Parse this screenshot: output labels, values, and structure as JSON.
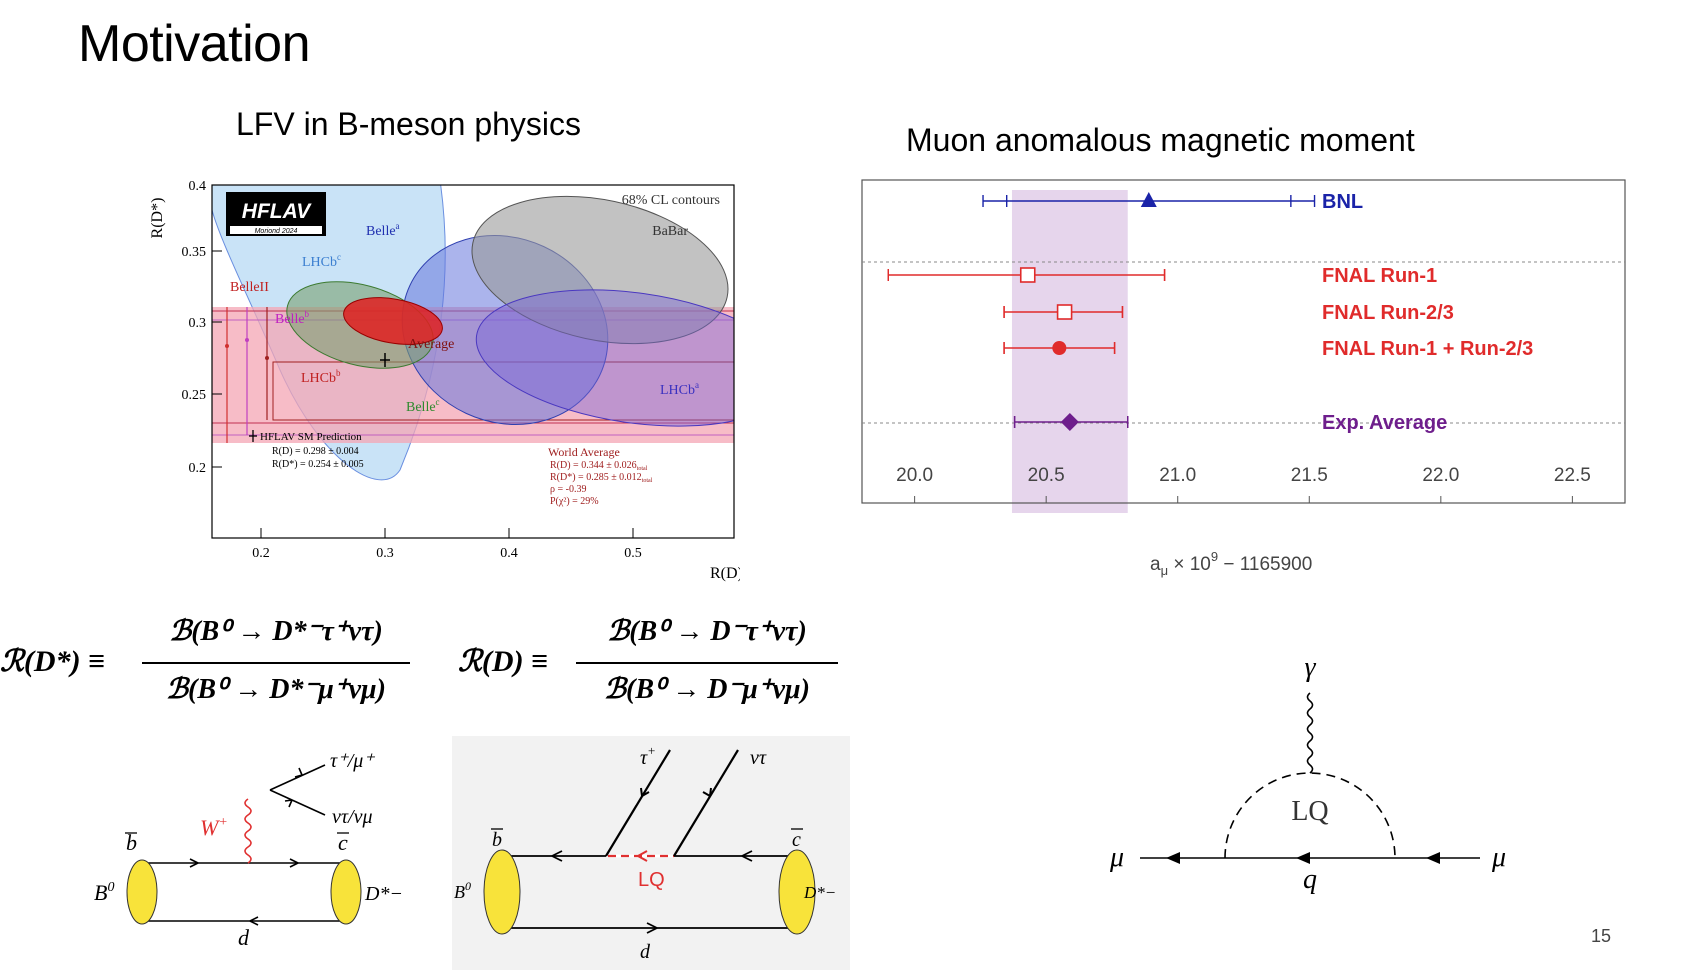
{
  "slide": {
    "title": "Motivation",
    "left_heading": "LFV in B-meson physics",
    "right_heading": "Muon anomalous magnetic moment",
    "page_number": "15"
  },
  "hflav": {
    "logo_text": "HFLAV",
    "logo_sub": "Moriond 2024",
    "contours_note": "68% CL contours",
    "xlabel": "R(D)",
    "ylabel": "R(D*)",
    "x_ticks": [
      "0.2",
      "0.3",
      "0.4",
      "0.5"
    ],
    "y_ticks": [
      "0.2",
      "0.25",
      "0.3",
      "0.35",
      "0.4"
    ],
    "labels": {
      "belle_a": "Belle",
      "belle_a_sup": "a",
      "babar": "BaBar",
      "lhcb_c": "LHCb",
      "lhcb_c_sup": "c",
      "belleII": "BelleII",
      "belle_b": "Belle",
      "belle_b_sup": "b",
      "average": "Average",
      "lhcb_b": "LHCb",
      "lhcb_b_sup": "b",
      "belle_c": "Belle",
      "belle_c_sup": "c",
      "lhcb_a": "LHCb",
      "lhcb_a_sup": "a"
    },
    "sm_prediction": {
      "title": "HFLAV SM Prediction",
      "line1": "R(D) = 0.298 ± 0.004",
      "line2": "R(D*) = 0.254 ± 0.005"
    },
    "world_average": {
      "title": "World Average",
      "line1": "R(D) = 0.344 ± 0.026",
      "line2": "R(D*) = 0.285 ± 0.012",
      "sub": "total",
      "line3": "ρ = -0.39",
      "line4": "P(χ²) = 29%"
    }
  },
  "chart_data": {
    "type": "scatter",
    "xlim": [
      19.8,
      22.7
    ],
    "x_ticks": [
      "20.0",
      "20.5",
      "21.0",
      "21.5",
      "22.0",
      "22.5"
    ],
    "xlabel_main": "a",
    "xlabel_sub": "μ",
    "xlabel_rest": " × 10",
    "xlabel_sup": "9",
    "xlabel_tail": " − 1165900",
    "band": [
      20.37,
      20.81
    ],
    "series": [
      {
        "name": "BNL",
        "value": 20.89,
        "err_stat": [
          20.35,
          21.43
        ],
        "err_tot": [
          20.26,
          21.52
        ],
        "marker": "triangle",
        "color": "#1a23a8"
      },
      {
        "name": "FNAL Run-1",
        "value": 20.43,
        "err_stat": [
          19.9,
          20.95
        ],
        "err_tot": [
          19.9,
          20.95
        ],
        "marker": "open-square",
        "color": "#e02b2b"
      },
      {
        "name": "FNAL Run-2/3",
        "value": 20.57,
        "err_stat": [
          20.34,
          20.79
        ],
        "err_tot": [
          20.34,
          20.79
        ],
        "marker": "open-square",
        "color": "#e02b2b"
      },
      {
        "name": "FNAL Run-1 + Run-2/3",
        "value": 20.55,
        "err_stat": [
          20.34,
          20.76
        ],
        "err_tot": [
          20.34,
          20.76
        ],
        "marker": "circle",
        "color": "#e02b2b"
      },
      {
        "name": "Exp. Average",
        "value": 20.59,
        "err_stat": [
          20.38,
          20.81
        ],
        "err_tot": [
          20.38,
          20.81
        ],
        "marker": "diamond",
        "color": "#6e1e8c"
      }
    ]
  },
  "formulas": {
    "rdstar_lhs": "ℛ(D*) ≡",
    "rdstar_num": "ℬ(B⁰ → D*⁻τ⁺ντ)",
    "rdstar_den": "ℬ(B⁰ → D*⁻μ⁺νμ)",
    "rd_lhs": "ℛ(D) ≡",
    "rd_num": "ℬ(B⁰ → D⁻τ⁺ντ)",
    "rd_den": "ℬ(B⁰ → D⁻μ⁺νμ)"
  },
  "feynman": {
    "sm": {
      "b": "b",
      "c": "c",
      "d": "d",
      "B0": "B",
      "Dstar": "D*−",
      "W": "W",
      "W_sup": "+",
      "tau": "τ⁺/μ⁺",
      "nu": "ντ/νμ"
    },
    "lq": {
      "b": "b",
      "c": "c",
      "d": "d",
      "B0": "B",
      "Dstar": "D*−",
      "LQ": "LQ",
      "tau": "τ",
      "tau_sup": "+",
      "nu": "ντ"
    },
    "g2": {
      "gamma": "γ",
      "LQ": "LQ",
      "mu_in": "μ",
      "mu_out": "μ",
      "q": "q"
    }
  }
}
